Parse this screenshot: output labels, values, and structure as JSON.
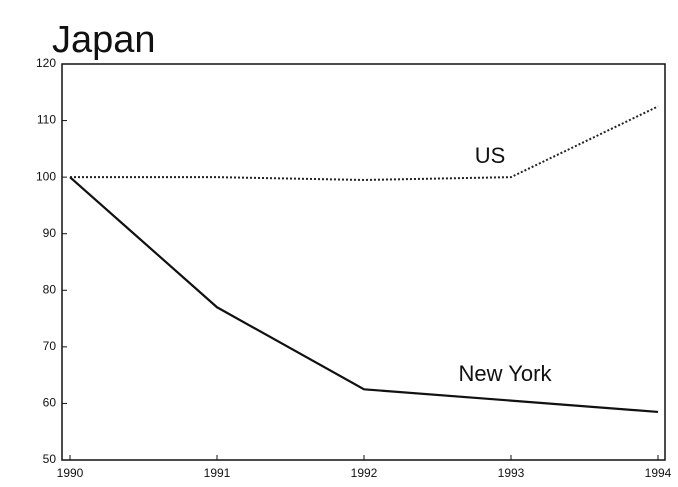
{
  "chart_data": {
    "type": "line",
    "title": "Japan",
    "x": [
      1990,
      1991,
      1992,
      1993,
      1994
    ],
    "series": [
      {
        "name": "US",
        "color": "#222222",
        "style": "dotted",
        "values": [
          100,
          100,
          99.5,
          100,
          112.5
        ]
      },
      {
        "name": "New York",
        "color": "#111111",
        "style": "solid",
        "values": [
          100,
          77,
          62.5,
          60.5,
          58.5
        ]
      }
    ],
    "xlim": [
      1990,
      1994
    ],
    "xticks": [
      1990,
      1991,
      1992,
      1993,
      1994
    ],
    "ylim": [
      50,
      120
    ],
    "yticks": [
      50,
      60,
      70,
      80,
      90,
      100,
      110,
      120
    ],
    "grid": false
  }
}
